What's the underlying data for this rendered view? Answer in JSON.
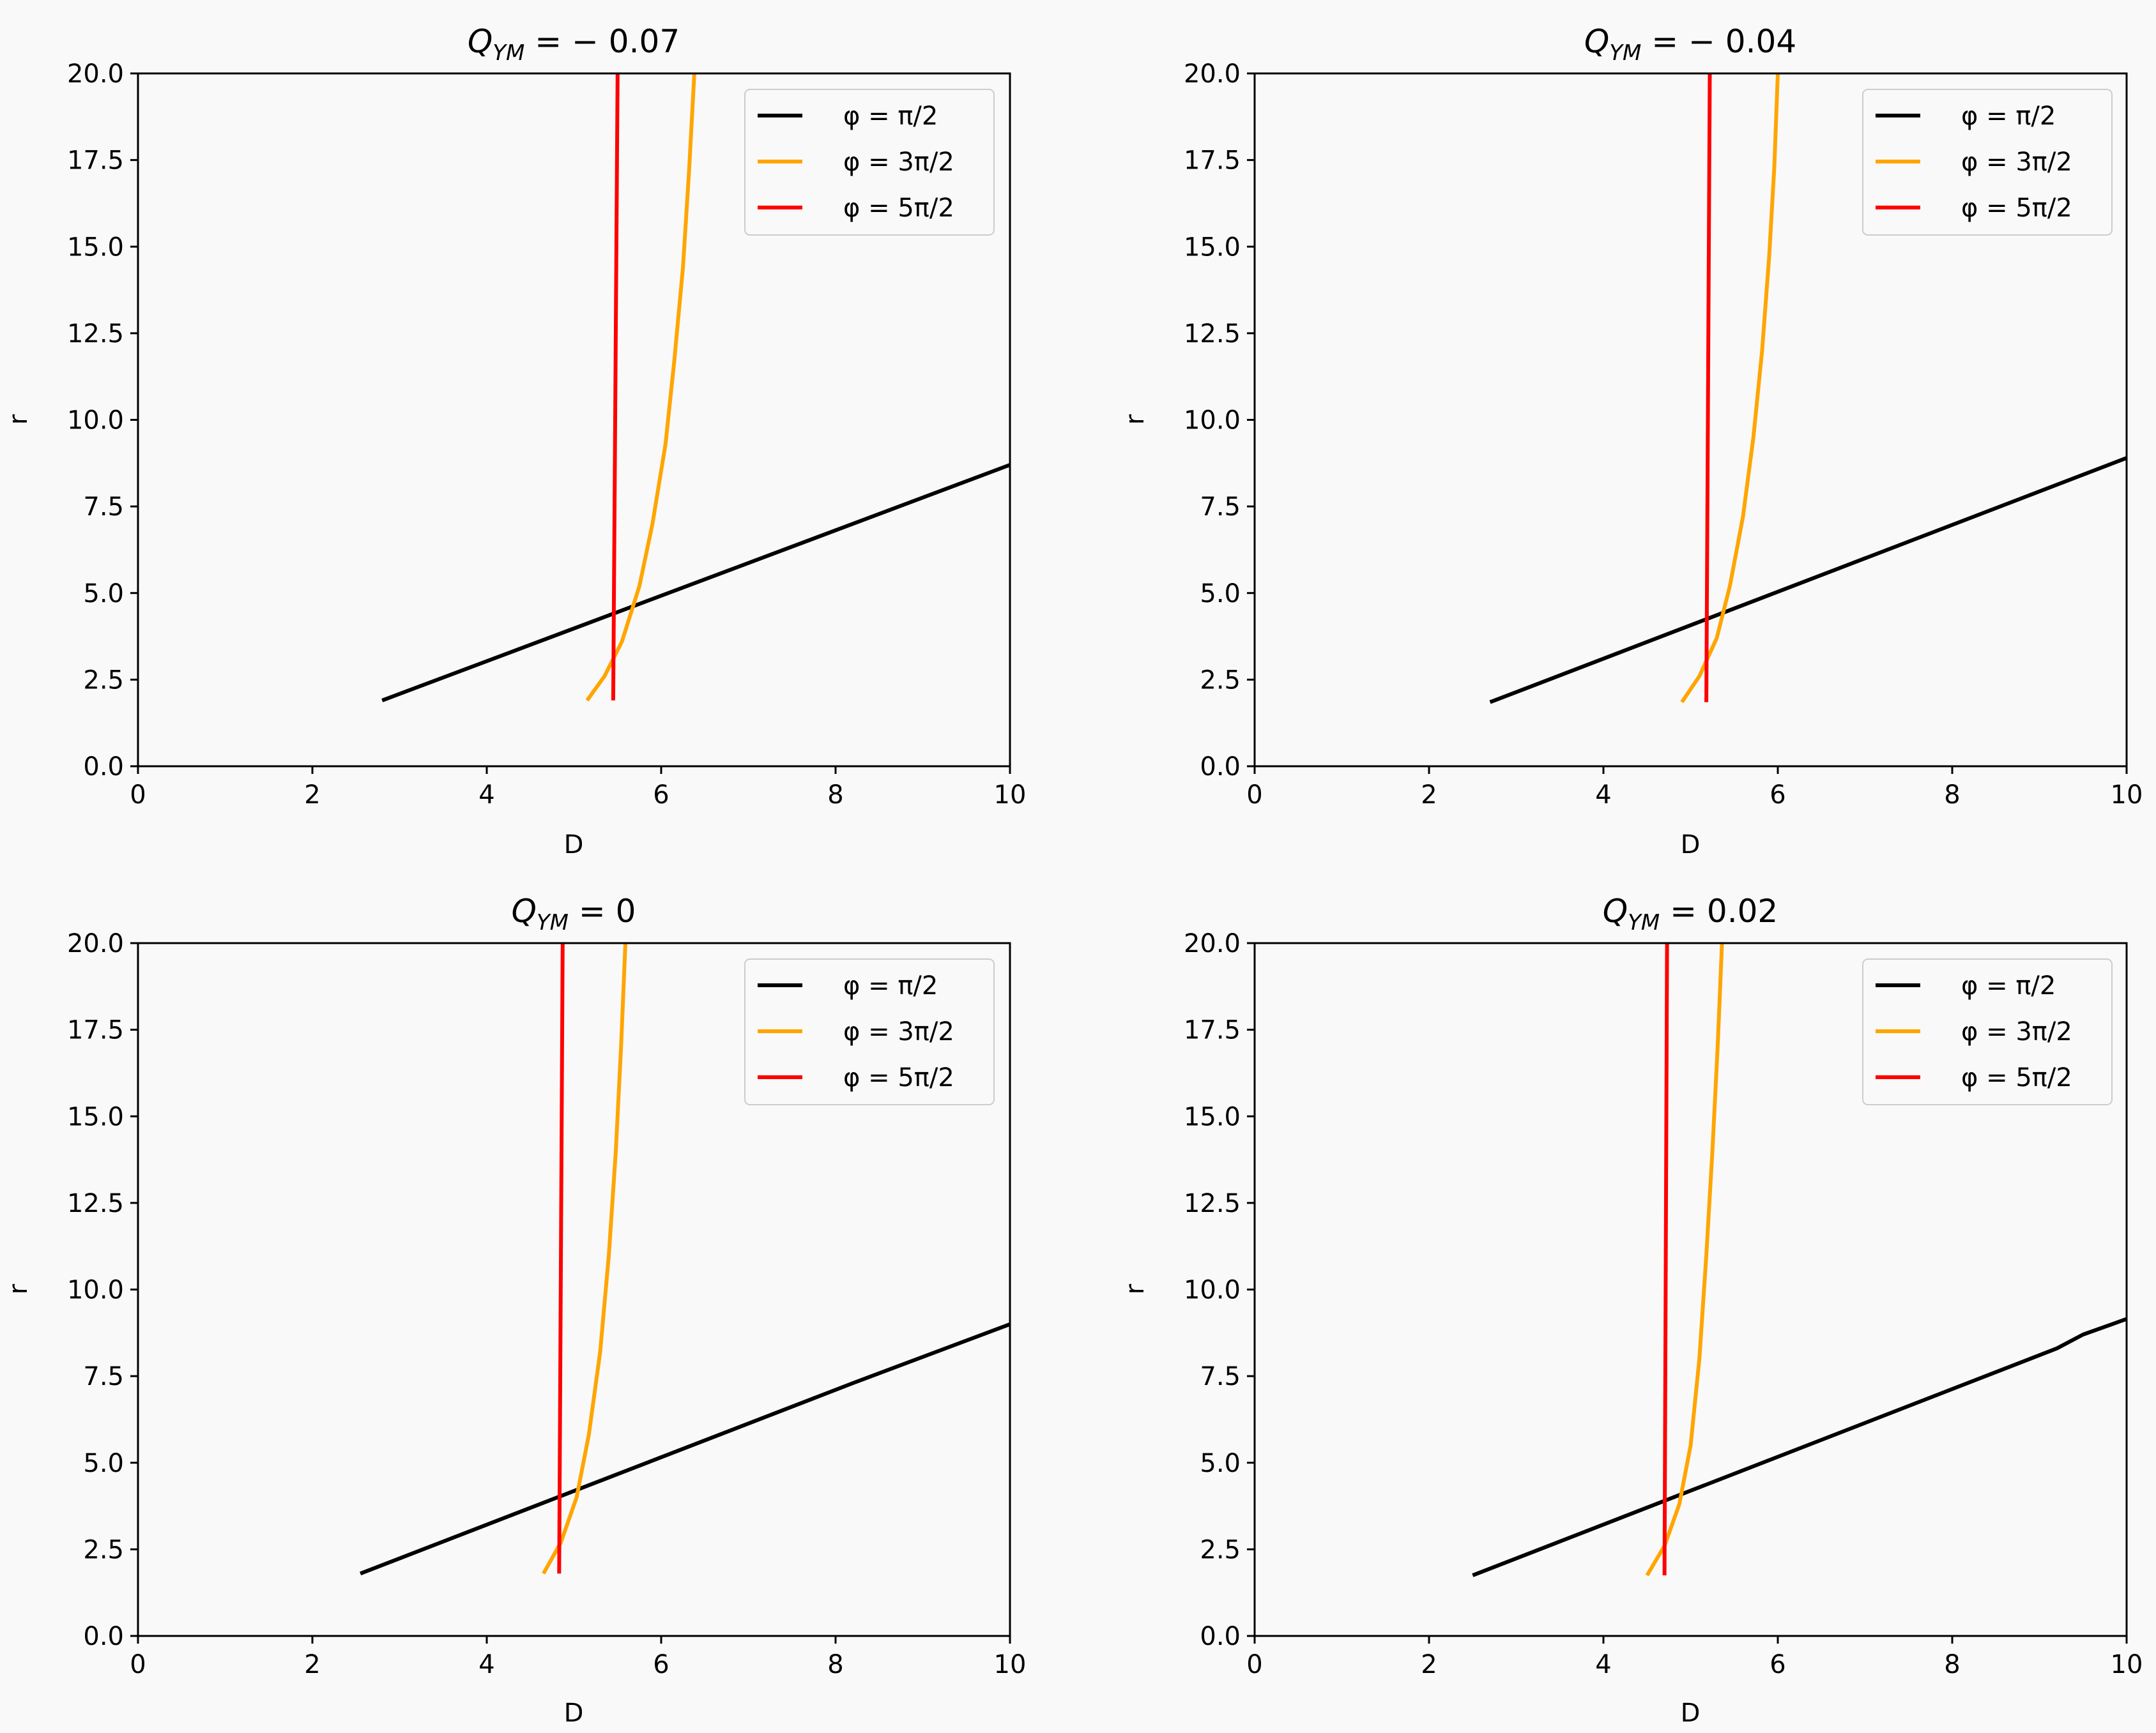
{
  "chart_data": [
    {
      "type": "line",
      "title": "Q_{YM} = -0.07",
      "title_main": "Q",
      "title_sub": "YM",
      "title_rest": " = − 0.07",
      "xlabel": "D",
      "ylabel": "r",
      "xlim": [
        0,
        10
      ],
      "ylim": [
        0,
        20
      ],
      "xticks": [
        "0",
        "2",
        "4",
        "6",
        "8",
        "10"
      ],
      "yticks": [
        "0.0",
        "2.5",
        "5.0",
        "7.5",
        "10.0",
        "12.5",
        "15.0",
        "17.5",
        "20.0"
      ],
      "legend": "top-right",
      "series": [
        {
          "name": "φ = π/2",
          "color": "#000000",
          "x": [
            2.8,
            10.0
          ],
          "y": [
            1.9,
            8.7
          ]
        },
        {
          "name": "φ = 3π/2",
          "color": "#ffa500",
          "x": [
            5.15,
            5.35,
            5.55,
            5.75,
            5.9,
            6.05,
            6.15,
            6.25,
            6.32,
            6.38
          ],
          "y": [
            1.9,
            2.6,
            3.6,
            5.2,
            7.0,
            9.3,
            11.7,
            14.4,
            17.2,
            20.0
          ]
        },
        {
          "name": "φ = 5π/2",
          "color": "#ff0000",
          "x": [
            5.45,
            5.5
          ],
          "y": [
            1.9,
            20.0
          ]
        }
      ]
    },
    {
      "type": "line",
      "title": "Q_{YM} = -0.04",
      "title_main": "Q",
      "title_sub": "YM",
      "title_rest": " = − 0.04",
      "xlabel": "D",
      "ylabel": "r",
      "xlim": [
        0,
        10
      ],
      "ylim": [
        0,
        20
      ],
      "xticks": [
        "0",
        "2",
        "4",
        "6",
        "8",
        "10"
      ],
      "yticks": [
        "0.0",
        "2.5",
        "5.0",
        "7.5",
        "10.0",
        "12.5",
        "15.0",
        "17.5",
        "20.0"
      ],
      "legend": "top-right",
      "series": [
        {
          "name": "φ = π/2",
          "color": "#000000",
          "x": [
            2.7,
            10.0
          ],
          "y": [
            1.85,
            8.9
          ]
        },
        {
          "name": "φ = 3π/2",
          "color": "#ffa500",
          "x": [
            4.9,
            5.1,
            5.3,
            5.45,
            5.6,
            5.72,
            5.82,
            5.9,
            5.96,
            6.0
          ],
          "y": [
            1.85,
            2.6,
            3.7,
            5.2,
            7.2,
            9.5,
            12.0,
            14.7,
            17.3,
            20.0
          ]
        },
        {
          "name": "φ = 5π/2",
          "color": "#ff0000",
          "x": [
            5.18,
            5.22
          ],
          "y": [
            1.85,
            20.0
          ]
        }
      ]
    },
    {
      "type": "line",
      "title": "Q_{YM} = 0",
      "title_main": "Q",
      "title_sub": "YM",
      "title_rest": " = 0",
      "xlabel": "D",
      "ylabel": "r",
      "xlim": [
        0,
        10
      ],
      "ylim": [
        0,
        20
      ],
      "xticks": [
        "0",
        "2",
        "4",
        "6",
        "8",
        "10"
      ],
      "yticks": [
        "0.0",
        "2.5",
        "5.0",
        "7.5",
        "10.0",
        "12.5",
        "15.0",
        "17.5",
        "20.0"
      ],
      "legend": "top-right",
      "series": [
        {
          "name": "φ = π/2",
          "color": "#000000",
          "x": [
            2.55,
            8.2,
            10.0
          ],
          "y": [
            1.8,
            7.3,
            9.0
          ]
        },
        {
          "name": "φ = 3π/2",
          "color": "#ffa500",
          "x": [
            4.65,
            4.85,
            5.03,
            5.17,
            5.3,
            5.4,
            5.48,
            5.54,
            5.59
          ],
          "y": [
            1.8,
            2.7,
            4.0,
            5.8,
            8.2,
            11.0,
            14.0,
            17.0,
            20.0
          ]
        },
        {
          "name": "φ = 5π/2",
          "color": "#ff0000",
          "x": [
            4.83,
            4.87
          ],
          "y": [
            1.8,
            20.0
          ]
        }
      ]
    },
    {
      "type": "line",
      "title": "Q_{YM} = 0.02",
      "title_main": "Q",
      "title_sub": "YM",
      "title_rest": " = 0.02",
      "xlabel": "D",
      "ylabel": "r",
      "xlim": [
        0,
        10
      ],
      "ylim": [
        0,
        20
      ],
      "xticks": [
        "0",
        "2",
        "4",
        "6",
        "8",
        "10"
      ],
      "yticks": [
        "0.0",
        "2.5",
        "5.0",
        "7.5",
        "10.0",
        "12.5",
        "15.0",
        "17.5",
        "20.0"
      ],
      "legend": "top-right",
      "series": [
        {
          "name": "φ = π/2",
          "color": "#000000",
          "x": [
            2.5,
            9.2,
            9.5,
            10.0
          ],
          "y": [
            1.75,
            8.3,
            8.7,
            9.15
          ]
        },
        {
          "name": "φ = 3π/2",
          "color": "#ffa500",
          "x": [
            4.5,
            4.7,
            4.87,
            5.0,
            5.1,
            5.18,
            5.25,
            5.31,
            5.36
          ],
          "y": [
            1.75,
            2.6,
            3.8,
            5.5,
            8.0,
            11.0,
            14.0,
            17.0,
            20.0
          ]
        },
        {
          "name": "φ = 5π/2",
          "color": "#ff0000",
          "x": [
            4.7,
            4.73
          ],
          "y": [
            1.75,
            20.0
          ]
        }
      ]
    }
  ]
}
